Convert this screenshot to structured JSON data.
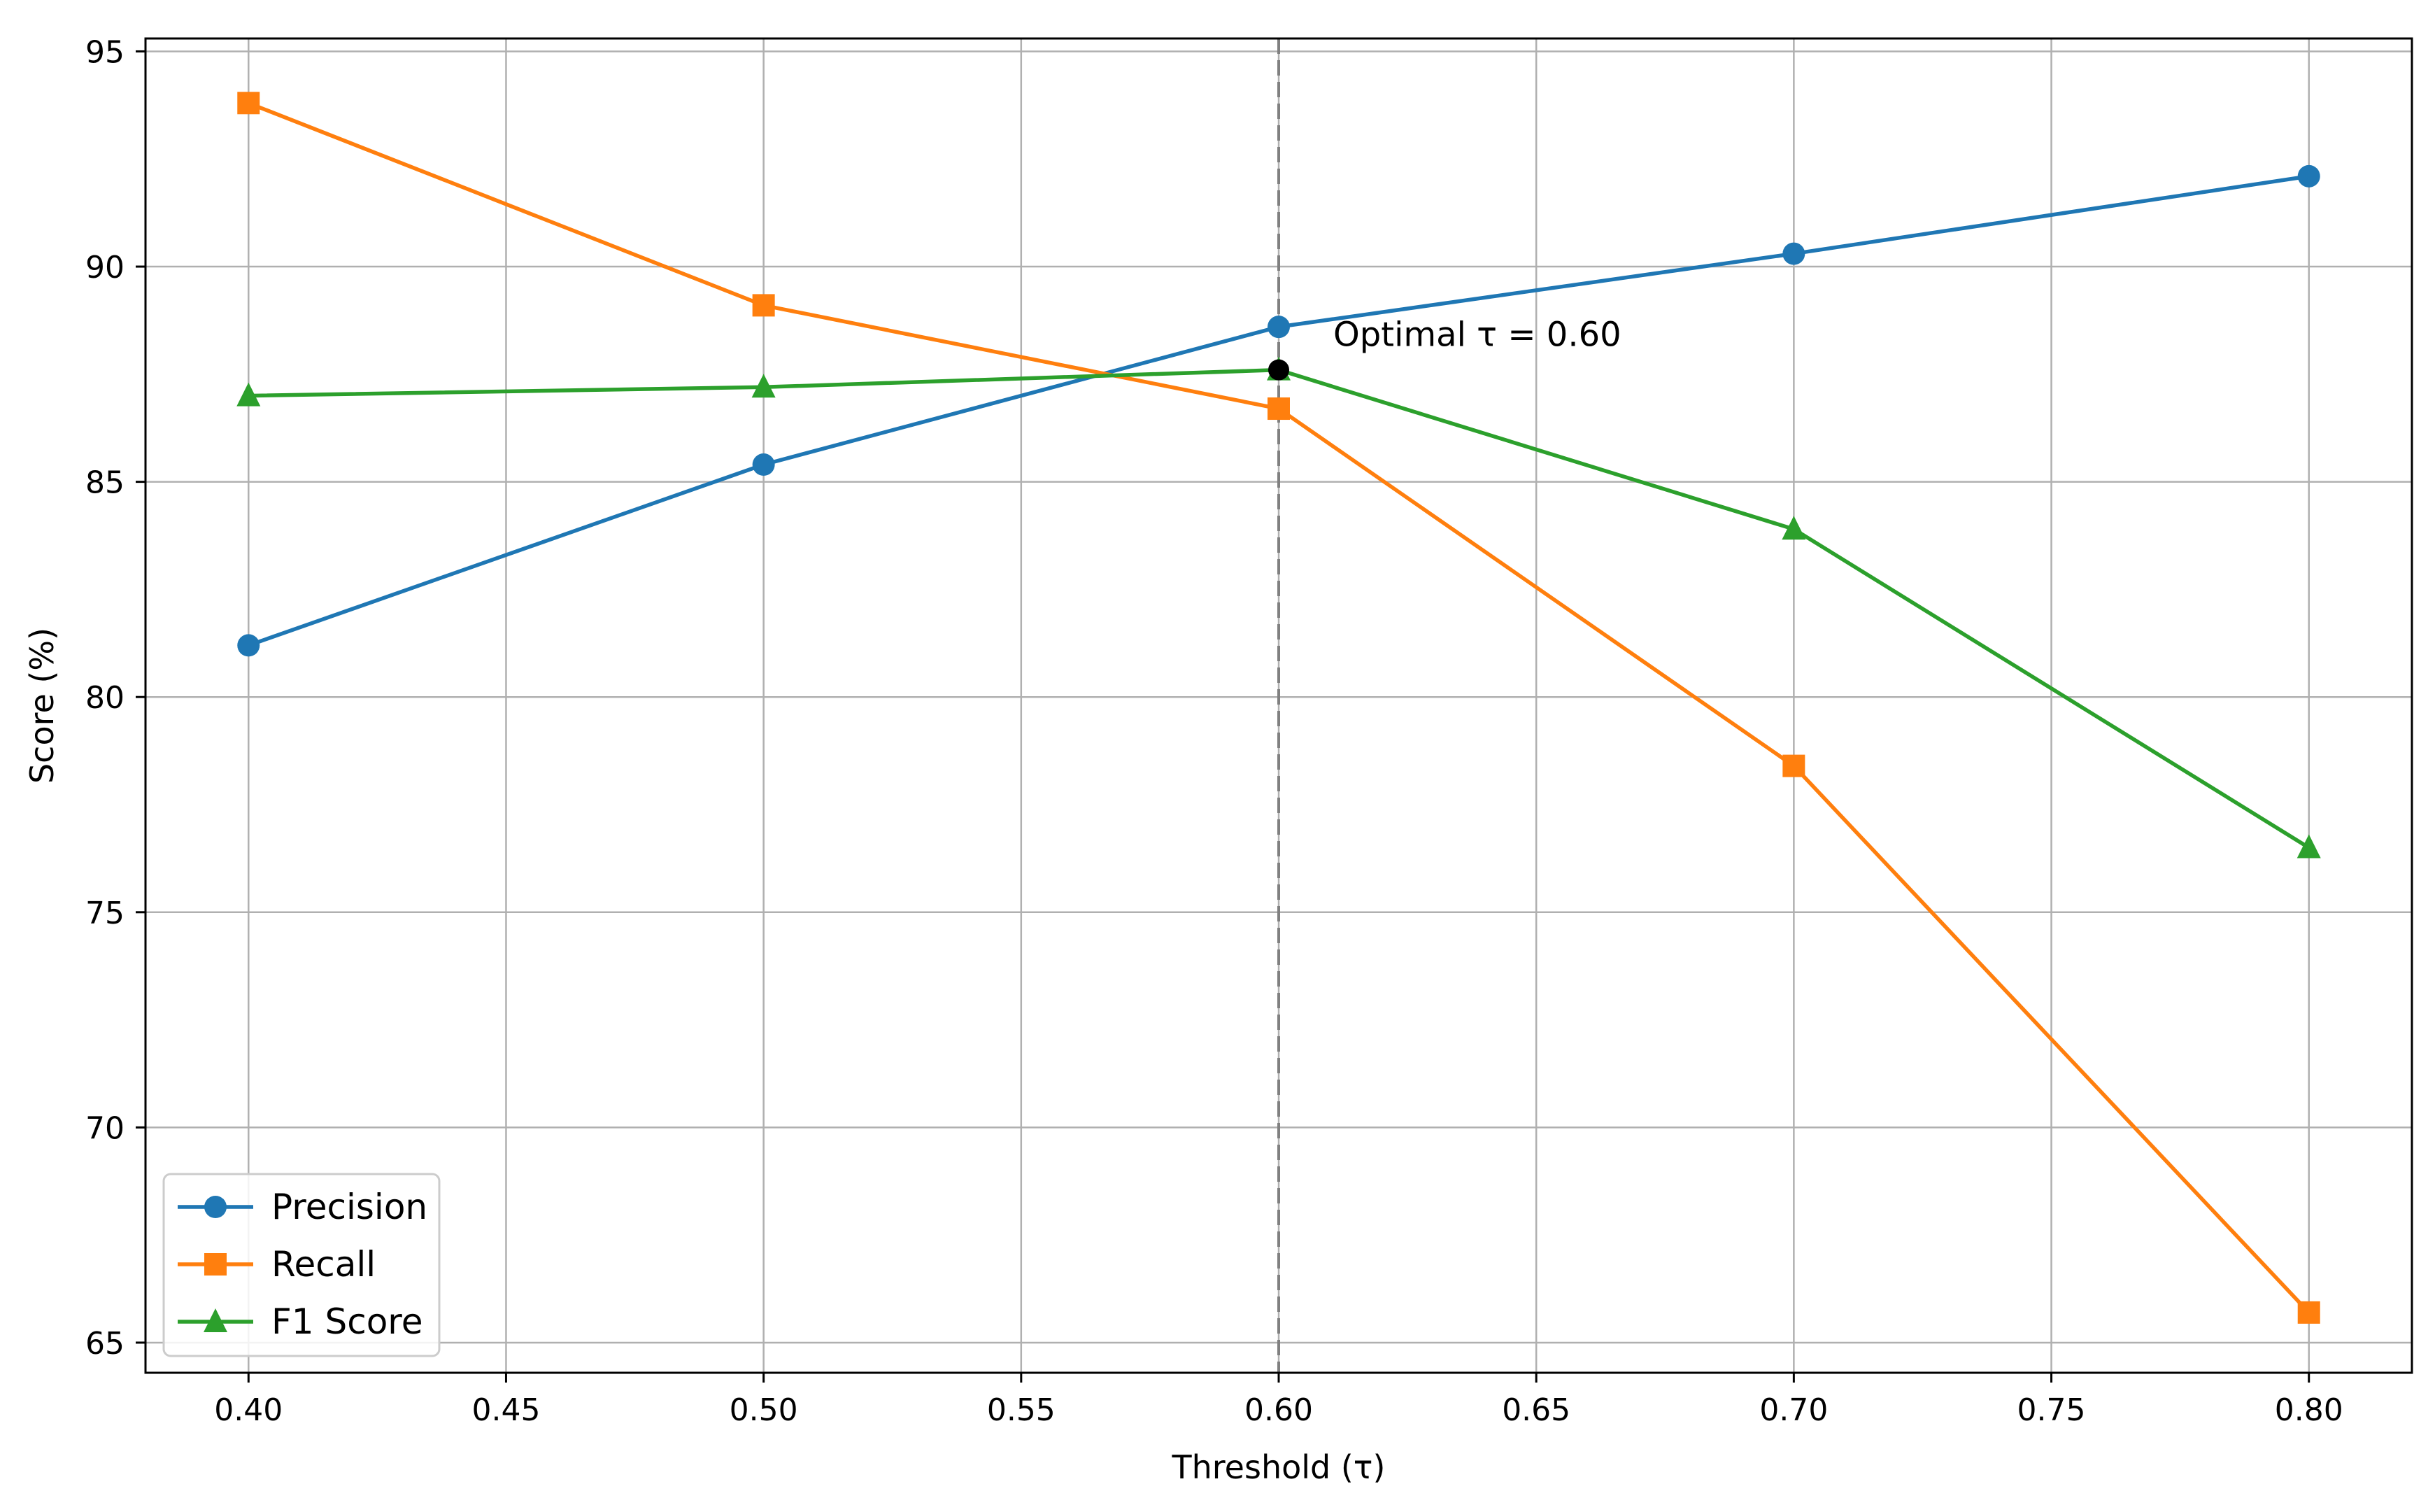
{
  "chart_data": {
    "type": "line",
    "title": "",
    "xlabel": "Threshold (τ)",
    "ylabel": "Score (%)",
    "xlim": [
      0.38,
      0.82
    ],
    "ylim": [
      64.3,
      95.3
    ],
    "xticks": [
      0.4,
      0.45,
      0.5,
      0.55,
      0.6,
      0.65,
      0.7,
      0.75,
      0.8
    ],
    "xtick_labels": [
      "0.40",
      "0.45",
      "0.50",
      "0.55",
      "0.60",
      "0.65",
      "0.70",
      "0.75",
      "0.80"
    ],
    "yticks": [
      65,
      70,
      75,
      80,
      85,
      90,
      95
    ],
    "ytick_labels": [
      "65",
      "70",
      "75",
      "80",
      "85",
      "90",
      "95"
    ],
    "grid": true,
    "legend_position": "bottom-left",
    "x": [
      0.4,
      0.5,
      0.6,
      0.7,
      0.8
    ],
    "series": [
      {
        "name": "Precision",
        "values": [
          81.2,
          85.4,
          88.6,
          90.3,
          92.1
        ],
        "color": "#1f77b4",
        "marker": "circle"
      },
      {
        "name": "Recall",
        "values": [
          93.8,
          89.1,
          86.7,
          78.4,
          65.7
        ],
        "color": "#ff7f0e",
        "marker": "square"
      },
      {
        "name": "F1 Score",
        "values": [
          87.0,
          87.2,
          87.6,
          83.9,
          76.5
        ],
        "color": "#2ca02c",
        "marker": "triangle"
      }
    ],
    "optimal": {
      "x": 0.6,
      "y": 87.6,
      "label": "Optimal τ = 0.60",
      "line_color": "#808080",
      "point_color": "#000000"
    }
  }
}
